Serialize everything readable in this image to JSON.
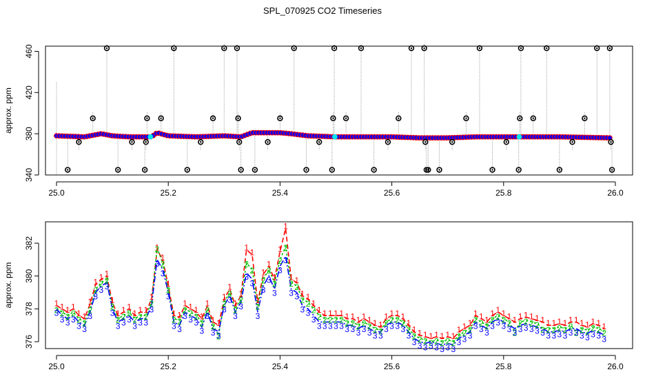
{
  "figure": {
    "title": "SPL_070925  CO2 Timeseries"
  },
  "colors": {
    "series1": "#ff0000",
    "series2": "#00c000",
    "series3": "#0000ff",
    "marker_fill": "#0000ff",
    "outlier": "#000000",
    "flagged": "#00e5ee",
    "drop_line": "#909090"
  },
  "chart_data": [
    {
      "type": "scatter",
      "panel": "top",
      "title": "",
      "xlabel": "",
      "ylabel": "approx. ppm",
      "xlim": [
        25.0,
        26.0
      ],
      "ylim": [
        340,
        465
      ],
      "x_ticks": [
        25.0,
        25.2,
        25.4,
        25.6,
        25.8,
        26.0
      ],
      "x_tick_labels": [
        "25.0",
        "25.2",
        "25.4",
        "25.6",
        "25.8",
        "26.0"
      ],
      "y_ticks": [
        340,
        380,
        420,
        460
      ],
      "y_tick_labels": [
        "340",
        "380",
        "420",
        "460"
      ],
      "baseline_profile": {
        "x": [
          25.0,
          25.05,
          25.08,
          25.1,
          25.13,
          25.17,
          25.18,
          25.2,
          25.25,
          25.3,
          25.33,
          25.35,
          25.4,
          25.42,
          25.45,
          25.5,
          25.6,
          25.65,
          25.7,
          25.75,
          25.8,
          25.9,
          25.99
        ],
        "y": [
          378,
          377,
          380,
          378,
          377,
          377,
          381,
          378,
          377,
          378,
          377,
          381,
          381,
          380,
          378,
          377,
          377,
          376,
          376,
          377,
          377,
          377,
          376
        ]
      },
      "outliers": {
        "x": [
          25.02,
          25.04,
          25.065,
          25.09,
          25.11,
          25.135,
          25.158,
          25.16,
          25.162,
          25.187,
          25.21,
          25.234,
          25.258,
          25.28,
          25.3,
          25.323,
          25.325,
          25.327,
          25.33,
          25.355,
          25.378,
          25.4,
          25.425,
          25.447,
          25.47,
          25.493,
          25.495,
          25.497,
          25.518,
          25.545,
          25.568,
          25.593,
          25.612,
          25.635,
          25.658,
          25.66,
          25.662,
          25.665,
          25.685,
          25.708,
          25.733,
          25.757,
          25.78,
          25.805,
          25.827,
          25.829,
          25.831,
          25.853,
          25.877,
          25.9,
          25.923,
          25.945,
          25.967,
          25.99,
          25.992,
          25.994
        ],
        "y": [
          345,
          372,
          395,
          463,
          345,
          372,
          345,
          372,
          395,
          395,
          463,
          345,
          372,
          395,
          463,
          463,
          395,
          372,
          345,
          345,
          372,
          395,
          463,
          345,
          372,
          345,
          395,
          463,
          395,
          463,
          345,
          372,
          395,
          463,
          463,
          372,
          345,
          345,
          345,
          372,
          395,
          463,
          345,
          372,
          345,
          395,
          463,
          395,
          463,
          345,
          372,
          395,
          463,
          463,
          372,
          345
        ]
      },
      "flagged_points": {
        "x": [
          25.168,
          25.498,
          25.828
        ],
        "y": [
          377,
          377,
          377
        ]
      }
    },
    {
      "type": "line",
      "panel": "bottom",
      "title": "",
      "xlabel": "",
      "ylabel": "approx. ppm",
      "xlim": [
        25.0,
        26.0
      ],
      "ylim": [
        375.6,
        383.8
      ],
      "x_ticks": [
        25.0,
        25.2,
        25.4,
        25.6,
        25.8,
        26.0
      ],
      "x_tick_labels": [
        "25.0",
        "25.2",
        "25.4",
        "25.6",
        "25.8",
        "26.0"
      ],
      "y_ticks": [
        376,
        378,
        380,
        382
      ],
      "y_tick_labels": [
        "376",
        "378",
        "380",
        "382"
      ],
      "x": [
        25.0,
        25.01,
        25.02,
        25.03,
        25.04,
        25.05,
        25.06,
        25.07,
        25.08,
        25.09,
        25.1,
        25.11,
        25.12,
        25.13,
        25.14,
        25.15,
        25.16,
        25.17,
        25.18,
        25.19,
        25.2,
        25.21,
        25.22,
        25.23,
        25.24,
        25.25,
        25.26,
        25.27,
        25.28,
        25.29,
        25.3,
        25.31,
        25.32,
        25.33,
        25.34,
        25.35,
        25.36,
        25.37,
        25.38,
        25.39,
        25.4,
        25.41,
        25.42,
        25.43,
        25.44,
        25.45,
        25.46,
        25.47,
        25.48,
        25.49,
        25.5,
        25.51,
        25.52,
        25.53,
        25.54,
        25.55,
        25.56,
        25.57,
        25.58,
        25.59,
        25.6,
        25.61,
        25.62,
        25.63,
        25.64,
        25.65,
        25.66,
        25.67,
        25.68,
        25.69,
        25.7,
        25.71,
        25.72,
        25.73,
        25.74,
        25.75,
        25.76,
        25.77,
        25.78,
        25.79,
        25.8,
        25.81,
        25.82,
        25.83,
        25.84,
        25.85,
        25.86,
        25.87,
        25.88,
        25.89,
        25.9,
        25.91,
        25.92,
        25.93,
        25.94,
        25.95,
        25.96,
        25.97,
        25.98
      ],
      "series": [
        {
          "name": "1",
          "values": [
            378.2,
            378.0,
            377.8,
            378.0,
            377.6,
            377.4,
            378.3,
            379.5,
            379.8,
            380.0,
            378.4,
            377.6,
            377.8,
            378.0,
            377.6,
            377.8,
            377.8,
            378.6,
            381.6,
            381.0,
            379.4,
            377.6,
            377.5,
            378.2,
            378.0,
            377.8,
            377.4,
            378.2,
            377.2,
            377.0,
            378.6,
            379.2,
            378.2,
            378.8,
            381.6,
            381.3,
            378.4,
            380.1,
            380.6,
            379.8,
            381.5,
            382.9,
            379.8,
            379.6,
            378.8,
            378.6,
            378.2,
            377.8,
            377.6,
            377.6,
            377.6,
            377.6,
            377.4,
            377.4,
            377.2,
            377.4,
            377.2,
            377.0,
            376.9,
            377.4,
            377.6,
            377.6,
            377.4,
            377.0,
            376.6,
            376.4,
            376.3,
            376.2,
            376.3,
            376.2,
            376.3,
            376.2,
            376.6,
            376.8,
            377.0,
            377.6,
            377.4,
            377.2,
            377.6,
            377.8,
            377.6,
            377.4,
            377.2,
            377.4,
            377.5,
            377.4,
            377.3,
            377.2,
            377.0,
            377.0,
            377.1,
            377.0,
            377.2,
            377.2,
            377.0,
            376.9,
            377.1,
            377.0,
            376.8
          ]
        },
        {
          "name": "2",
          "values": [
            378.0,
            377.8,
            377.6,
            377.8,
            377.4,
            377.2,
            378.0,
            379.2,
            379.6,
            379.8,
            378.2,
            377.4,
            377.6,
            377.8,
            377.4,
            377.6,
            377.6,
            378.4,
            381.7,
            380.8,
            379.2,
            377.4,
            377.3,
            378.0,
            377.8,
            377.6,
            377.2,
            378.0,
            377.0,
            376.4,
            378.4,
            379.0,
            378.0,
            378.6,
            380.8,
            380.4,
            378.2,
            379.8,
            380.4,
            379.6,
            381.0,
            381.8,
            379.6,
            379.4,
            378.6,
            378.4,
            378.0,
            377.6,
            377.4,
            377.4,
            377.4,
            377.4,
            377.2,
            377.2,
            377.0,
            377.2,
            377.0,
            376.8,
            376.7,
            377.2,
            377.4,
            377.4,
            377.2,
            376.8,
            376.4,
            376.2,
            376.1,
            376.0,
            376.1,
            376.0,
            376.1,
            376.0,
            376.4,
            376.6,
            376.8,
            377.4,
            377.2,
            377.0,
            377.4,
            377.6,
            377.4,
            377.2,
            376.6,
            377.2,
            377.3,
            377.2,
            377.1,
            376.8,
            376.8,
            376.8,
            376.9,
            376.8,
            377.0,
            376.6,
            376.8,
            376.7,
            376.9,
            376.8,
            376.6
          ]
        },
        {
          "name": "3",
          "values": [
            378.0,
            377.6,
            377.4,
            377.6,
            377.2,
            377.0,
            377.8,
            379.0,
            379.4,
            379.6,
            378.0,
            377.2,
            377.4,
            377.6,
            377.2,
            377.4,
            377.4,
            378.2,
            381.0,
            380.4,
            379.0,
            377.2,
            377.0,
            377.8,
            377.6,
            377.4,
            376.9,
            377.8,
            376.8,
            376.6,
            378.2,
            378.8,
            377.8,
            378.4,
            380.2,
            379.8,
            377.8,
            379.4,
            380.0,
            379.2,
            380.6,
            381.2,
            379.2,
            379.0,
            378.2,
            378.0,
            377.6,
            377.2,
            377.2,
            377.2,
            377.2,
            377.2,
            377.0,
            377.0,
            376.8,
            377.0,
            376.8,
            376.6,
            376.6,
            377.0,
            377.2,
            377.2,
            377.0,
            376.6,
            376.2,
            376.0,
            375.9,
            376.0,
            375.9,
            375.8,
            375.9,
            375.8,
            376.2,
            376.4,
            376.6,
            377.2,
            377.0,
            376.8,
            377.2,
            377.4,
            377.2,
            377.0,
            376.8,
            377.0,
            377.1,
            377.0,
            376.9,
            376.8,
            376.6,
            376.6,
            376.7,
            376.6,
            376.8,
            376.8,
            376.6,
            376.5,
            376.7,
            376.6,
            376.4
          ]
        }
      ]
    }
  ]
}
